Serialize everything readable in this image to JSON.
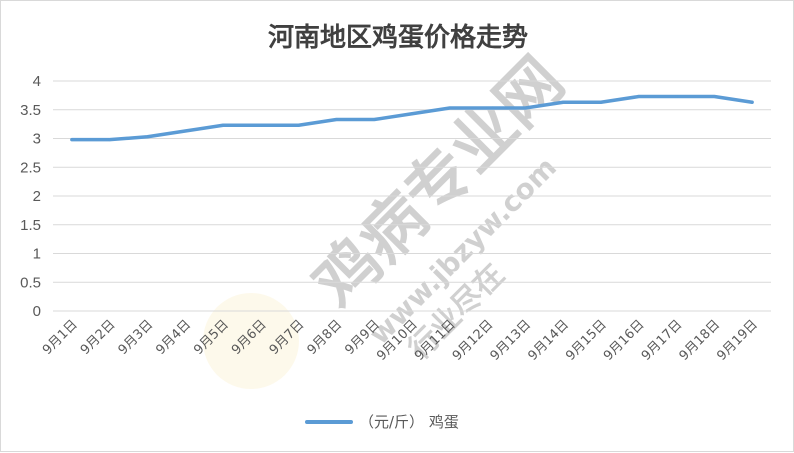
{
  "chart_data": {
    "type": "line",
    "title": "河南地区鸡蛋价格走势",
    "xlabel": "",
    "ylabel": "",
    "ylim": [
      0,
      4
    ],
    "yticks": [
      "0",
      "0.5",
      "1",
      "1.5",
      "2",
      "2.5",
      "3",
      "3.5",
      "4"
    ],
    "grid": true,
    "legend_position": "bottom",
    "categories": [
      "9月1日",
      "9月2日",
      "9月3日",
      "9月4日",
      "9月5日",
      "9月6日",
      "9月7日",
      "9月8日",
      "9月9日",
      "9月10日",
      "9月11日",
      "9月12日",
      "9月13日",
      "9月14日",
      "9月15日",
      "9月16日",
      "9月17日",
      "9月18日",
      "9月19日"
    ],
    "series": [
      {
        "name": "（元/斤） 鸡蛋",
        "color": "#5b9bd5",
        "values": [
          2.98,
          2.98,
          3.03,
          3.13,
          3.23,
          3.23,
          3.23,
          3.33,
          3.33,
          3.43,
          3.53,
          3.53,
          3.53,
          3.63,
          3.63,
          3.73,
          3.73,
          3.73,
          3.63
        ]
      }
    ]
  },
  "watermark": {
    "main": "鸡病专业网",
    "url": "www.jbzyw.com",
    "sub": "行业尽在",
    "color": "#e8474b"
  }
}
